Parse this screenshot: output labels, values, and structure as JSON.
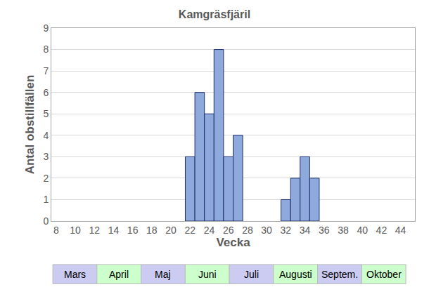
{
  "chart_data": {
    "type": "bar",
    "title": "Kamgräsfjäril",
    "x_label": "Vecka",
    "y_label": "Antal obstillfällen",
    "x": [
      22,
      23,
      24,
      25,
      26,
      27,
      32,
      33,
      34,
      35
    ],
    "values": [
      3,
      6,
      5,
      8,
      3,
      4,
      1,
      2,
      3,
      2
    ],
    "color": "#8eaadc",
    "xlim": [
      7.5,
      45.5
    ],
    "xticks": [
      8,
      10,
      12,
      14,
      16,
      18,
      20,
      22,
      24,
      26,
      28,
      30,
      32,
      34,
      36,
      38,
      40,
      42,
      44
    ],
    "ylim": [
      0,
      9
    ],
    "yticks": [
      0,
      1,
      2,
      3,
      4,
      5,
      6,
      7,
      8,
      9
    ],
    "grid": true,
    "month_labels": [
      "Mars",
      "April",
      "Maj",
      "Juni",
      "Juli",
      "Augusti",
      "Septem.",
      "Oktober"
    ]
  }
}
